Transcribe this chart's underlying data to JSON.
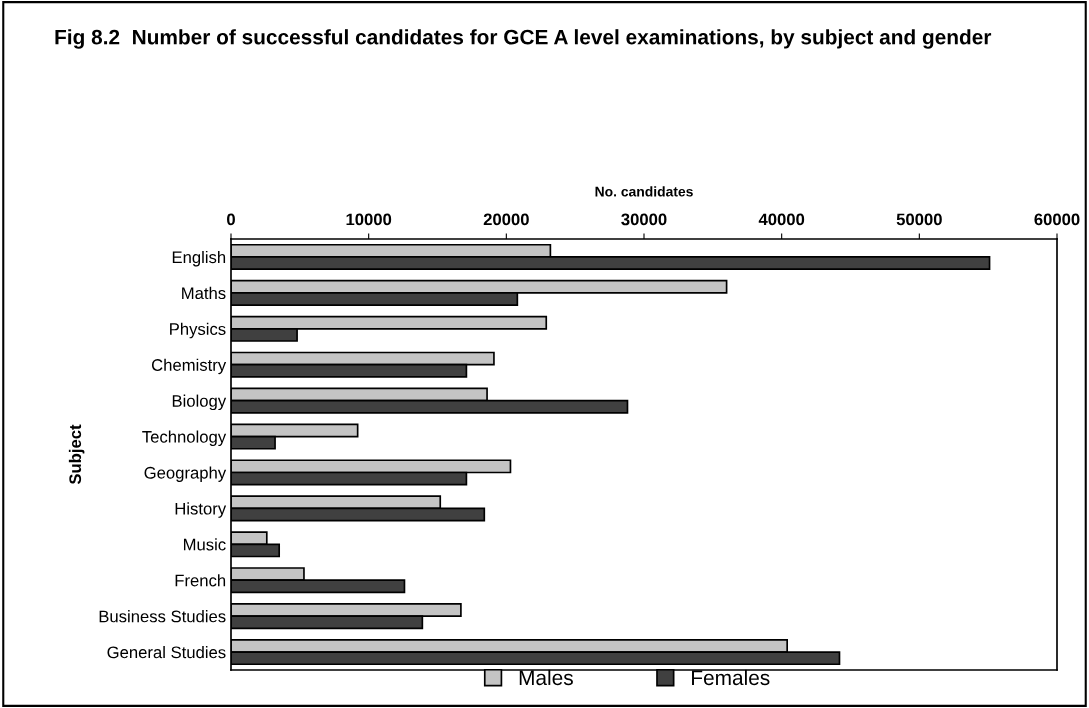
{
  "chart_data": {
    "type": "bar",
    "orientation": "horizontal",
    "title": "Fig 8.2  Number of successful candidates for GCE A level examinations, by subject and gender",
    "xlabel": "No. candidates",
    "ylabel": "Subject",
    "categories": [
      "English",
      "Maths",
      "Physics",
      "Chemistry",
      "Biology",
      "Technology",
      "Geography",
      "History",
      "Music",
      "French",
      "Business Studies",
      "General Studies"
    ],
    "series": [
      {
        "name": "Males",
        "color": "#c4c4c4",
        "values": [
          23200,
          36000,
          22900,
          19100,
          18600,
          9200,
          20300,
          15200,
          2600,
          5300,
          16700,
          40400
        ]
      },
      {
        "name": "Females",
        "color": "#404040",
        "values": [
          55100,
          20800,
          4800,
          17100,
          28800,
          3200,
          17100,
          18400,
          3500,
          12600,
          13900,
          44200
        ]
      }
    ],
    "xlim": [
      0,
      60000
    ],
    "xticks": [
      0,
      10000,
      20000,
      30000,
      40000,
      50000,
      60000
    ],
    "grid": false,
    "legend": "bottom"
  }
}
